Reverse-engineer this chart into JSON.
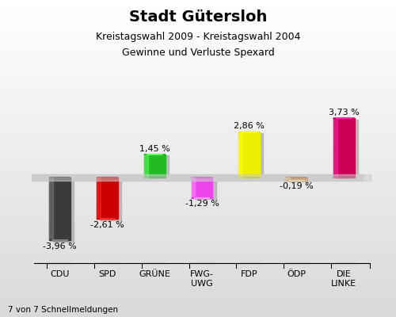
{
  "title": "Stadt Gütersloh",
  "subtitle1": "Kreistagswahl 2009 - Kreistagswahl 2004",
  "subtitle2": "Gewinne und Verluste Spexard",
  "categories": [
    "CDU",
    "SPD",
    "GRÜNE",
    "FWG-\nUWG",
    "FDP",
    "ÖDP",
    "DIE\nLINKE"
  ],
  "values": [
    -3.96,
    -2.61,
    1.45,
    -1.29,
    2.86,
    -0.19,
    3.73
  ],
  "value_labels": [
    "-3,96 %",
    "-2,61 %",
    "1,45 %",
    "-1,29 %",
    "2,86 %",
    "-0,19 %",
    "3,73 %"
  ],
  "colors": [
    "#3a3a3a",
    "#cc0000",
    "#22bb22",
    "#ee44ee",
    "#eeee00",
    "#cc7733",
    "#cc0055"
  ],
  "background_color": "#ffffff",
  "bar_width": 0.45,
  "ylim": [
    -5.2,
    5.2
  ],
  "footer": "7 von 7 Schnellmeldungen",
  "zero_band_color": "#cccccc",
  "shadow_color": "#aaaaaa",
  "title_fontsize": 14,
  "subtitle_fontsize": 9,
  "label_fontsize": 8
}
